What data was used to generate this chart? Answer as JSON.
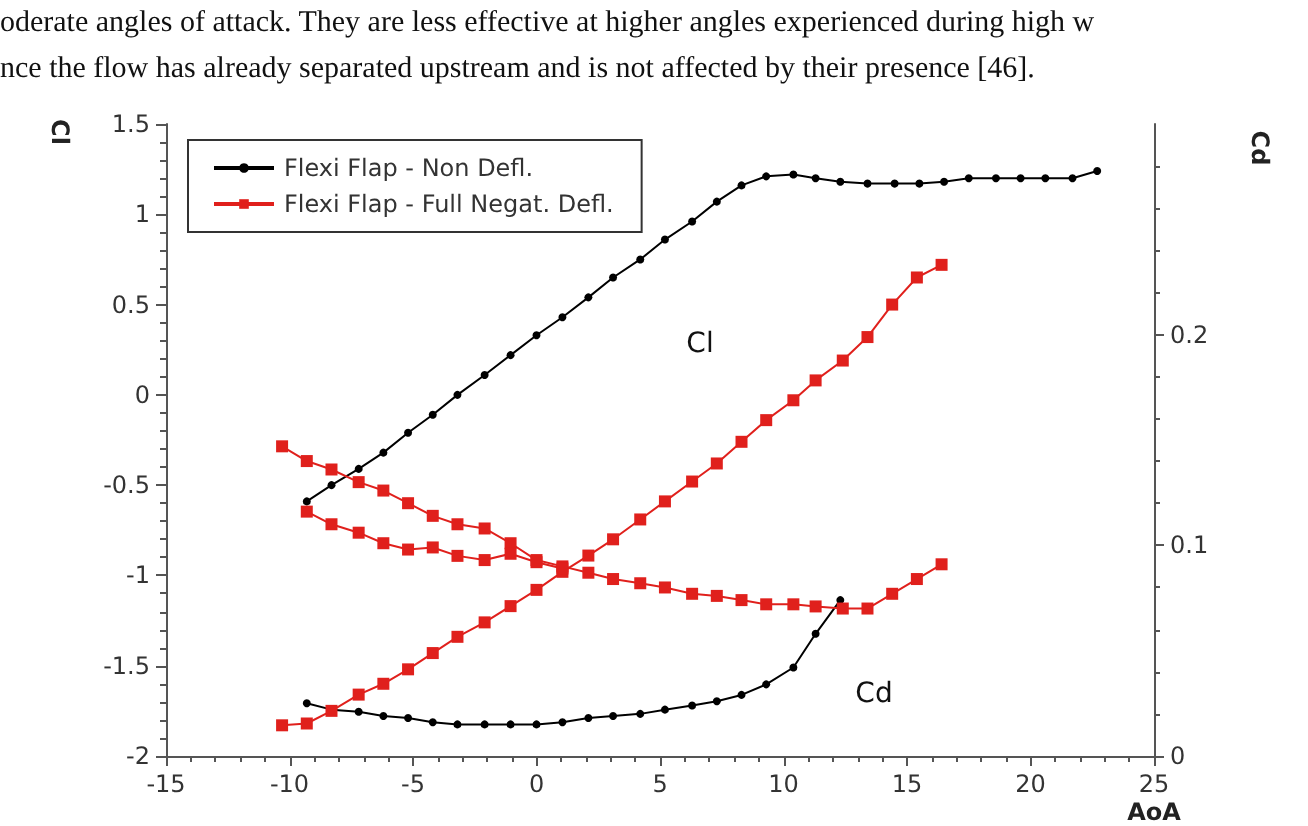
{
  "chart_data": {
    "type": "line",
    "annotations": [
      "oderate angles of attack. They are less effective at higher angles experienced during high w",
      "nce the flow has already separated upstream and is not affected by their presence [46].",
      "Cl",
      "Cd"
    ],
    "xlabel": "AoA",
    "ylabel": "Cl",
    "y2label": "Cd",
    "xlim": [
      -15,
      25
    ],
    "xticks": [
      -15,
      -10,
      -5,
      0,
      5,
      10,
      15,
      20,
      25
    ],
    "ylim": [
      -2,
      1.5
    ],
    "yticks": [
      -2,
      -1.5,
      -1,
      -0.5,
      0,
      0.5,
      1,
      1.5
    ],
    "y2lim": [
      0,
      0.3
    ],
    "y2ticks": [
      0,
      0.1,
      0.2
    ],
    "grid": false,
    "legend": "top left",
    "series": [
      {
        "name": "Flexi Flap - Non Defl.",
        "color": "#000000",
        "marker": "circle",
        "x": [
          -9.3,
          -8.3,
          -7.2,
          -6.2,
          -5.2,
          -4.2,
          -3.2,
          -2.1,
          -1.05,
          0,
          1.05,
          2.1,
          3.1,
          4.2,
          5.2,
          6.3,
          7.3,
          8.3,
          9.3,
          10.4,
          11.3,
          12.3,
          13.4,
          14.5,
          15.5,
          16.5,
          17.5,
          18.6,
          19.6,
          20.6,
          21.7,
          22.7
        ],
        "values": [
          -0.59,
          -0.5,
          -0.41,
          -0.32,
          -0.21,
          -0.11,
          0.0,
          0.11,
          0.22,
          0.33,
          0.43,
          0.54,
          0.65,
          0.75,
          0.86,
          0.96,
          1.07,
          1.16,
          1.21,
          1.22,
          1.2,
          1.18,
          1.17,
          1.17,
          1.17,
          1.18,
          1.2,
          1.2,
          1.2,
          1.2,
          1.2,
          1.24
        ]
      },
      {
        "color": "#000000",
        "marker": "circle",
        "axis": "y2",
        "x": [
          -9.3,
          -8.3,
          -7.2,
          -6.2,
          -5.2,
          -4.2,
          -3.2,
          -2.1,
          -1.05,
          0,
          1.05,
          2.1,
          3.1,
          4.2,
          5.2,
          6.3,
          7.3,
          8.3,
          9.3,
          10.4,
          11.3,
          12.3
        ],
        "values": [
          0.025,
          0.022,
          0.021,
          0.019,
          0.018,
          0.016,
          0.015,
          0.015,
          0.015,
          0.015,
          0.016,
          0.018,
          0.019,
          0.02,
          0.022,
          0.024,
          0.026,
          0.029,
          0.034,
          0.042,
          0.058,
          0.074
        ]
      },
      {
        "name": "Flexi Flap - Full Negat. Defl.",
        "color": "#e0201c",
        "marker": "square",
        "x": [
          -10.3,
          -9.3,
          -8.3,
          -7.2,
          -6.2,
          -5.2,
          -4.2,
          -3.2,
          -2.1,
          -1.05,
          0,
          1.05,
          2.1,
          3.1,
          4.2,
          5.2,
          6.3,
          7.3,
          8.3,
          9.3,
          10.4,
          11.3,
          12.4,
          13.4,
          14.4,
          15.4,
          16.4
        ],
        "values": [
          -1.83,
          -1.82,
          -1.75,
          -1.66,
          -1.6,
          -1.52,
          -1.43,
          -1.34,
          -1.26,
          -1.17,
          -1.08,
          -0.98,
          -0.89,
          -0.8,
          -0.69,
          -0.59,
          -0.48,
          -0.38,
          -0.26,
          -0.14,
          -0.03,
          0.08,
          0.19,
          0.32,
          0.5,
          0.65,
          0.72
        ]
      },
      {
        "color": "#e0201c",
        "marker": "square",
        "axis": "y2",
        "x": [
          -10.3,
          -9.3,
          -8.3,
          -7.2,
          -6.2,
          -5.2,
          -4.2,
          -3.2,
          -2.1,
          -1.05,
          0,
          1.05,
          2.1,
          3.1,
          4.2,
          5.2,
          6.3,
          7.3,
          8.3,
          9.3,
          10.4,
          11.3,
          12.4,
          13.4,
          14.4,
          15.4,
          16.4
        ],
        "values": [
          0.147,
          0.14,
          0.136,
          0.13,
          0.126,
          0.12,
          0.114,
          0.11,
          0.108,
          0.101,
          0.093,
          0.09,
          0.087,
          0.084,
          0.082,
          0.08,
          0.077,
          0.076,
          0.074,
          0.072,
          0.072,
          0.071,
          0.07,
          0.07,
          0.077,
          0.084,
          0.091
        ]
      },
      {
        "color": "#e0201c",
        "marker": "square",
        "axis": "y2",
        "x": [
          -9.3,
          -8.3,
          -7.2,
          -6.2,
          -5.2,
          -4.2,
          -3.2,
          -2.1,
          -1.05,
          0,
          1.05
        ],
        "values": [
          0.116,
          0.11,
          0.106,
          0.101,
          0.098,
          0.099,
          0.095,
          0.093,
          0.096,
          0.092,
          0.089
        ]
      }
    ]
  }
}
